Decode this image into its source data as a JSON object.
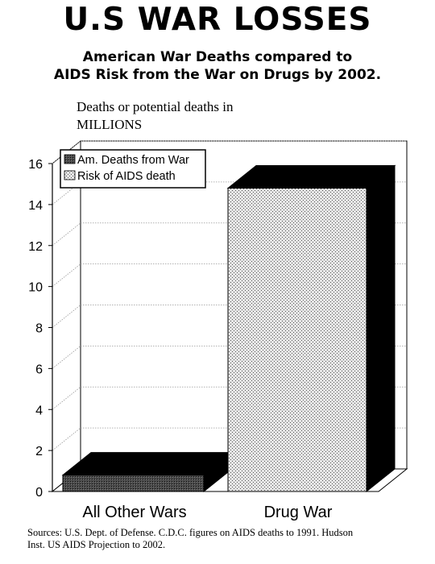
{
  "header": {
    "title": "U.S WAR LOSSES",
    "subtitle_line1": "American War Deaths compared to",
    "subtitle_line2": "AIDS Risk from the War on Drugs by 2002."
  },
  "axis": {
    "ylabel_line1": "Deaths or potential deaths in",
    "ylabel_line2": "MILLIONS"
  },
  "footer": {
    "sources_line1": "Sources: U.S. Dept. of Defense. C.D.C. figures on AIDS deaths to 1991. Hudson",
    "sources_line2": "Inst. US AIDS Projection to 2002."
  },
  "chart_data": {
    "type": "bar",
    "title": "U.S WAR LOSSES",
    "subtitle": "American War Deaths compared to AIDS Risk from the War on Drugs by 2002.",
    "ylabel": "Deaths or potential deaths in MILLIONS",
    "xlabel": "",
    "categories": [
      "All Other Wars",
      "Drug War"
    ],
    "series": [
      {
        "name": "Am. Deaths from War",
        "values": [
          0.8,
          null
        ]
      },
      {
        "name": "Risk of AIDS death",
        "values": [
          null,
          14.8
        ]
      }
    ],
    "ylim": [
      0,
      16
    ],
    "yticks": [
      0,
      2,
      4,
      6,
      8,
      10,
      12,
      14,
      16
    ],
    "grid": true,
    "three_d": true,
    "legend": "top-left"
  },
  "colors": {
    "war_bar": "#3a3a3a",
    "aids_bar": "#d9d9d9",
    "bar_side": "#000000"
  }
}
